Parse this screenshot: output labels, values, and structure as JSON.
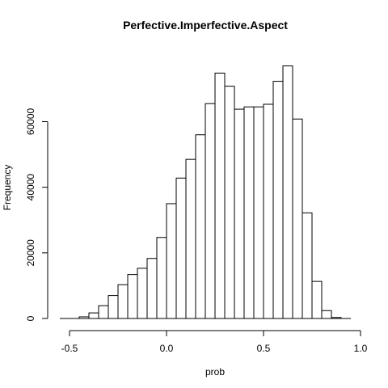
{
  "chart_data": {
    "type": "bar",
    "title": "Perfective.Imperfective.Aspect",
    "xlabel": "prob",
    "ylabel": "Frequency",
    "xlim": [
      -0.55,
      1.0
    ],
    "ylim": [
      0,
      77000
    ],
    "x_ticks": [
      -0.5,
      0.0,
      0.5,
      1.0
    ],
    "x_tick_labels": [
      "-0.5",
      "0.0",
      "0.5",
      "1.0"
    ],
    "y_ticks": [
      0,
      20000,
      40000,
      60000
    ],
    "y_tick_labels": [
      "0",
      "20000",
      "40000",
      "60000"
    ],
    "bin_width": 0.05,
    "bins": [
      {
        "x0": -0.45,
        "x1": -0.4,
        "count": 500
      },
      {
        "x0": -0.4,
        "x1": -0.35,
        "count": 1700
      },
      {
        "x0": -0.35,
        "x1": -0.3,
        "count": 3900
      },
      {
        "x0": -0.3,
        "x1": -0.25,
        "count": 7000
      },
      {
        "x0": -0.25,
        "x1": -0.2,
        "count": 10300
      },
      {
        "x0": -0.2,
        "x1": -0.15,
        "count": 13400
      },
      {
        "x0": -0.15,
        "x1": -0.1,
        "count": 15300
      },
      {
        "x0": -0.1,
        "x1": -0.05,
        "count": 18300
      },
      {
        "x0": -0.05,
        "x1": 0.0,
        "count": 24700
      },
      {
        "x0": 0.0,
        "x1": 0.05,
        "count": 35000
      },
      {
        "x0": 0.05,
        "x1": 0.1,
        "count": 42800
      },
      {
        "x0": 0.1,
        "x1": 0.15,
        "count": 48500
      },
      {
        "x0": 0.15,
        "x1": 0.2,
        "count": 56000
      },
      {
        "x0": 0.2,
        "x1": 0.25,
        "count": 65500
      },
      {
        "x0": 0.25,
        "x1": 0.3,
        "count": 74800
      },
      {
        "x0": 0.3,
        "x1": 0.35,
        "count": 70800
      },
      {
        "x0": 0.35,
        "x1": 0.4,
        "count": 63800
      },
      {
        "x0": 0.4,
        "x1": 0.45,
        "count": 64500
      },
      {
        "x0": 0.45,
        "x1": 0.5,
        "count": 64500
      },
      {
        "x0": 0.5,
        "x1": 0.55,
        "count": 65300
      },
      {
        "x0": 0.55,
        "x1": 0.6,
        "count": 72300
      },
      {
        "x0": 0.6,
        "x1": 0.65,
        "count": 77000
      },
      {
        "x0": 0.65,
        "x1": 0.7,
        "count": 60800
      },
      {
        "x0": 0.7,
        "x1": 0.75,
        "count": 32200
      },
      {
        "x0": 0.75,
        "x1": 0.8,
        "count": 11300
      },
      {
        "x0": 0.8,
        "x1": 0.85,
        "count": 2400
      },
      {
        "x0": 0.85,
        "x1": 0.9,
        "count": 300
      }
    ],
    "grid": false,
    "legend": "none",
    "colors": {
      "bar_fill": "#ffffff",
      "bar_stroke": "#000000",
      "axis": "#000000"
    }
  }
}
